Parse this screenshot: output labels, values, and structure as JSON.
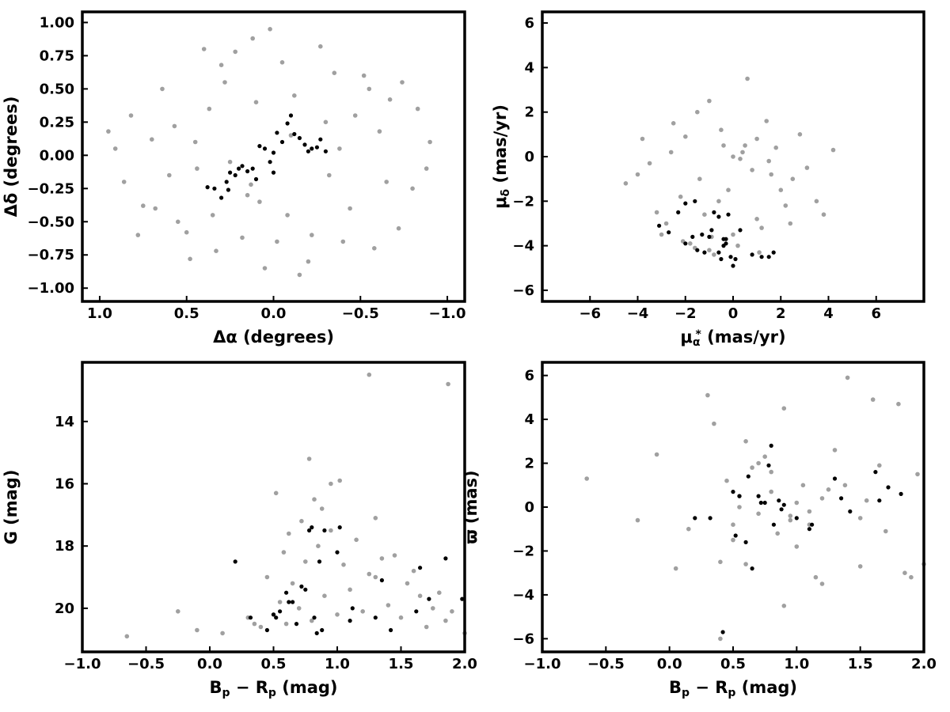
{
  "colors": {
    "field": "#a0a0a0",
    "members": "#000000",
    "frame": "#000000",
    "background": "#ffffff"
  },
  "chart_data": [
    {
      "id": "sky",
      "type": "scatter",
      "xlabel": "Δα (degrees)",
      "ylabel": "Δδ (degrees)",
      "xlim": [
        1.1,
        -1.1
      ],
      "ylim": [
        -1.1,
        1.08
      ],
      "xticks": [
        1.0,
        0.5,
        0.0,
        -0.5,
        -1.0
      ],
      "xtick_labels": [
        "1.0",
        "0.5",
        "0.0",
        "−0.5",
        "−1.0"
      ],
      "yticks": [
        1.0,
        0.75,
        0.5,
        0.25,
        0.0,
        -0.25,
        -0.5,
        -0.75,
        -1.0
      ],
      "ytick_labels": [
        "1.00",
        "0.75",
        "0.50",
        "0.25",
        "0.00",
        "−0.25",
        "−0.50",
        "−0.75",
        "−1.00"
      ],
      "grid": false,
      "series": [
        {
          "x": [
            0.82,
            -0.35,
            0.12,
            0.55,
            -0.61,
            0.33,
            -0.12,
            0.7,
            -0.8,
            0.05,
            -0.44,
            0.28,
            0.91,
            -0.22,
            0.4,
            -0.67,
            0.15,
            -0.05,
            0.6,
            -0.9,
            0.25,
            -0.3,
            0.48,
            -0.72,
            0.02,
            0.37,
            -0.15,
            0.75,
            -0.52,
            0.18,
            -0.38,
            0.64,
            -0.08,
            0.86,
            -0.27,
            0.1,
            -0.58,
            0.44,
            -0.83,
            0.3,
            -0.47,
            0.57,
            -0.2,
            0.08,
            -0.65,
            0.5,
            -0.1,
            0.78,
            -0.4,
            0.22,
            -0.74,
            0.13,
            -0.55,
            0.35,
            -0.32,
            0.68,
            -0.02,
            0.95,
            -0.88,
            0.45
          ],
          "y": [
            0.3,
            0.62,
            0.88,
            -0.5,
            0.18,
            -0.72,
            0.45,
            0.12,
            -0.25,
            -0.85,
            -0.4,
            0.55,
            0.05,
            -0.6,
            0.8,
            0.42,
            -0.3,
            0.7,
            -0.15,
            0.1,
            -0.05,
            0.25,
            -0.78,
            -0.55,
            0.95,
            0.35,
            -0.9,
            -0.38,
            0.6,
            -0.62,
            0.05,
            0.5,
            -0.45,
            -0.2,
            0.82,
            0.4,
            -0.7,
            -0.1,
            0.35,
            0.68,
            0.3,
            0.22,
            -0.8,
            -0.35,
            -0.2,
            -0.58,
            0.15,
            -0.6,
            -0.65,
            0.78,
            0.55,
            -0.22,
            0.5,
            -0.45,
            -0.15,
            -0.4,
            -0.65,
            0.18,
            -0.1,
            0.1
          ]
        },
        {
          "x": [
            0.38,
            0.34,
            0.3,
            0.27,
            0.25,
            0.22,
            0.2,
            0.18,
            0.15,
            0.12,
            0.1,
            0.08,
            0.05,
            0.02,
            0.0,
            -0.02,
            -0.05,
            -0.08,
            -0.1,
            -0.12,
            -0.15,
            -0.18,
            -0.2,
            -0.22,
            -0.25,
            -0.27,
            -0.3,
            0.0,
            0.26
          ],
          "y": [
            -0.24,
            -0.25,
            -0.32,
            -0.2,
            -0.13,
            -0.15,
            -0.1,
            -0.08,
            -0.12,
            -0.1,
            -0.18,
            0.07,
            0.05,
            -0.05,
            0.02,
            0.17,
            0.1,
            0.24,
            0.3,
            0.16,
            0.13,
            0.08,
            0.03,
            0.05,
            0.06,
            0.12,
            0.03,
            -0.13,
            -0.26
          ]
        }
      ]
    },
    {
      "id": "pm",
      "type": "scatter",
      "xlabel_parts": [
        "μ",
        "α",
        "*",
        " (mas/yr)"
      ],
      "ylabel_parts": [
        "μ",
        "δ",
        " (mas/yr)"
      ],
      "xlim": [
        -8,
        8
      ],
      "ylim": [
        -6.5,
        6.5
      ],
      "xticks": [
        -6,
        -4,
        -2,
        0,
        2,
        4,
        6
      ],
      "xtick_labels": [
        "−6",
        "−4",
        "−2",
        "0",
        "2",
        "4",
        "6"
      ],
      "yticks": [
        6,
        4,
        2,
        0,
        -2,
        -4,
        -6
      ],
      "ytick_labels": [
        "6",
        "4",
        "2",
        "0",
        "−2",
        "−4",
        "−6"
      ],
      "grid": false,
      "series": [
        {
          "x": [
            -4.5,
            -3.2,
            -2.1,
            -1.0,
            0.0,
            1.0,
            2.0,
            3.1,
            4.2,
            -3.8,
            -2.5,
            -1.5,
            -0.5,
            0.5,
            1.5,
            2.5,
            3.5,
            -2.8,
            -1.8,
            -0.8,
            0.2,
            1.2,
            2.2,
            -4.0,
            -2.2,
            -1.2,
            -0.2,
            0.8,
            1.8,
            2.8,
            -3.0,
            -1.6,
            -0.6,
            0.4,
            1.4,
            -2.6,
            -1.4,
            0.0,
            1.0,
            2.4,
            -1.0,
            0.6,
            -0.4,
            1.6,
            3.8,
            -3.5,
            -2.0,
            0.3,
            -0.9,
            1.1
          ],
          "y": [
            -1.2,
            -2.5,
            -3.8,
            -4.2,
            -3.5,
            -2.8,
            -1.5,
            -0.5,
            0.3,
            0.8,
            1.5,
            2.0,
            1.2,
            0.5,
            -0.2,
            -1.0,
            -2.0,
            -3.0,
            -3.9,
            -4.4,
            -4.0,
            -3.2,
            -2.2,
            -0.8,
            -1.8,
            -2.6,
            -1.5,
            -0.6,
            0.4,
            1.0,
            -3.5,
            -4.1,
            -2.0,
            0.2,
            1.6,
            0.2,
            -1.0,
            0.0,
            0.8,
            -3.0,
            2.5,
            3.5,
            0.5,
            -0.8,
            -2.6,
            -0.3,
            0.9,
            -0.1,
            -3.6,
            -4.3
          ]
        },
        {
          "x": [
            -3.1,
            -2.7,
            -2.3,
            -2.0,
            -1.7,
            -1.5,
            -1.3,
            -1.2,
            -1.0,
            -0.8,
            -0.6,
            -0.5,
            -0.4,
            -0.3,
            -0.2,
            -0.1,
            0.0,
            0.1,
            0.3,
            0.8,
            1.2,
            1.5,
            1.7,
            -1.6,
            -0.9,
            -0.4,
            -2.0,
            -0.6,
            -0.3
          ],
          "y": [
            -3.1,
            -3.4,
            -2.5,
            -2.1,
            -3.6,
            -4.2,
            -3.5,
            -4.3,
            -3.6,
            -2.5,
            -2.7,
            -4.6,
            -3.7,
            -3.9,
            -2.6,
            -4.5,
            -4.9,
            -4.6,
            -3.3,
            -4.4,
            -4.5,
            -4.5,
            -4.3,
            -2.0,
            -3.3,
            -4.0,
            -3.9,
            -4.3,
            -3.7
          ]
        }
      ]
    },
    {
      "id": "cmd",
      "type": "scatter",
      "xlabel_parts": [
        "B",
        "p",
        " − R",
        "p",
        " (mag)"
      ],
      "ylabel": "G (mag)",
      "xlim": [
        -1.0,
        2.0
      ],
      "ylim": [
        21.4,
        12.1
      ],
      "xticks": [
        -1.0,
        -0.5,
        0.0,
        0.5,
        1.0,
        1.5,
        2.0
      ],
      "xtick_labels": [
        "−1.0",
        "−0.5",
        "0.0",
        "0.5",
        "1.0",
        "1.5",
        "2.0"
      ],
      "yticks": [
        20,
        18,
        16,
        14
      ],
      "ytick_labels": [
        "20",
        "18",
        "16",
        "14"
      ],
      "grid": false,
      "series": [
        {
          "x": [
            -0.65,
            -0.25,
            -0.1,
            0.1,
            0.3,
            0.4,
            0.5,
            0.55,
            0.6,
            0.65,
            0.7,
            0.75,
            0.8,
            0.85,
            0.9,
            0.95,
            1.0,
            1.05,
            1.1,
            1.2,
            1.3,
            1.4,
            1.5,
            1.6,
            1.7,
            1.8,
            1.9,
            2.0,
            0.45,
            0.58,
            0.72,
            0.88,
            1.15,
            1.35,
            1.55,
            1.75,
            0.35,
            0.62,
            0.82,
            1.02,
            1.25,
            1.45,
            1.65,
            1.85,
            0.52,
            0.78,
            0.95,
            1.3,
            1.25,
            1.87
          ],
          "y": [
            20.9,
            20.1,
            20.7,
            20.8,
            20.3,
            20.6,
            20.2,
            19.8,
            20.5,
            19.2,
            20.0,
            18.5,
            20.4,
            18.0,
            19.6,
            17.5,
            20.2,
            18.6,
            19.4,
            20.1,
            19.0,
            19.9,
            20.3,
            18.8,
            20.6,
            19.5,
            20.1,
            20.8,
            19.0,
            18.2,
            17.2,
            16.8,
            17.8,
            18.4,
            19.2,
            20.0,
            20.5,
            17.6,
            16.5,
            15.9,
            18.9,
            18.3,
            19.6,
            20.4,
            16.3,
            15.2,
            16.0,
            17.1,
            12.5,
            12.8
          ]
        },
        {
          "x": [
            0.2,
            0.32,
            0.45,
            0.5,
            0.52,
            0.55,
            0.6,
            0.62,
            0.65,
            0.68,
            0.72,
            0.75,
            0.78,
            0.8,
            0.82,
            0.84,
            0.86,
            0.88,
            0.9,
            1.0,
            1.02,
            1.1,
            1.12,
            1.3,
            1.35,
            1.42,
            1.62,
            1.65,
            1.72,
            1.85,
            1.98
          ],
          "y": [
            18.5,
            20.3,
            20.7,
            20.2,
            20.3,
            20.1,
            19.5,
            19.8,
            19.8,
            20.5,
            19.3,
            19.4,
            17.5,
            17.4,
            20.3,
            20.8,
            18.5,
            20.7,
            17.5,
            18.2,
            17.4,
            20.4,
            20.0,
            20.3,
            19.1,
            20.7,
            20.1,
            18.7,
            19.7,
            18.4,
            19.7
          ]
        }
      ]
    },
    {
      "id": "plx",
      "type": "scatter",
      "xlabel_parts": [
        "B",
        "p",
        " − R",
        "p",
        " (mag)"
      ],
      "ylabel": "ϖ (mas)",
      "xlim": [
        -1.0,
        2.0
      ],
      "ylim": [
        -6.6,
        6.6
      ],
      "xticks": [
        -1.0,
        -0.5,
        0.0,
        0.5,
        1.0,
        1.5,
        2.0
      ],
      "xtick_labels": [
        "−1.0",
        "−0.5",
        "0.0",
        "0.5",
        "1.0",
        "1.5",
        "2.0"
      ],
      "yticks": [
        6,
        4,
        2,
        0,
        -2,
        -4,
        -6
      ],
      "ytick_labels": [
        "6",
        "4",
        "2",
        "0",
        "−2",
        "−4",
        "−6"
      ],
      "grid": false,
      "series": [
        {
          "x": [
            -0.65,
            -0.25,
            -0.1,
            0.05,
            0.15,
            0.3,
            0.4,
            0.45,
            0.5,
            0.55,
            0.6,
            0.65,
            0.7,
            0.75,
            0.8,
            0.85,
            0.9,
            0.95,
            1.0,
            1.05,
            1.1,
            1.15,
            1.2,
            1.3,
            1.4,
            1.5,
            1.6,
            1.7,
            1.8,
            1.9,
            2.0,
            0.35,
            0.6,
            0.9,
            1.2,
            1.5,
            1.85,
            0.5,
            0.8,
            1.0,
            1.38,
            1.55,
            0.4,
            0.7,
            0.95,
            1.25,
            1.65,
            1.95,
            0.55,
            1.1
          ],
          "y": [
            1.3,
            -0.6,
            2.4,
            -2.8,
            -1.0,
            5.1,
            -6.0,
            1.2,
            -0.8,
            0.5,
            -2.6,
            1.8,
            -0.3,
            2.3,
            0.7,
            -1.2,
            4.5,
            -0.4,
            0.2,
            1.0,
            -0.2,
            -3.2,
            0.4,
            2.6,
            5.9,
            -0.5,
            4.9,
            -1.1,
            4.7,
            -3.2,
            -2.6,
            3.8,
            3.0,
            -4.5,
            -3.5,
            -2.7,
            -3.0,
            -1.5,
            1.6,
            -1.8,
            1.0,
            0.3,
            -2.5,
            2.0,
            -0.6,
            0.8,
            1.9,
            1.5,
            0.0,
            -0.8
          ]
        },
        {
          "x": [
            0.2,
            0.32,
            0.42,
            0.5,
            0.52,
            0.55,
            0.6,
            0.62,
            0.65,
            0.7,
            0.72,
            0.75,
            0.78,
            0.8,
            0.82,
            0.86,
            0.88,
            0.9,
            1.0,
            1.1,
            1.12,
            1.3,
            1.35,
            1.42,
            1.62,
            1.65,
            1.72,
            1.82
          ],
          "y": [
            -0.5,
            -0.5,
            -5.7,
            0.7,
            -1.3,
            0.5,
            -1.6,
            1.4,
            -2.8,
            0.5,
            0.2,
            0.2,
            1.9,
            2.8,
            -0.8,
            0.3,
            -0.1,
            0.1,
            -0.5,
            -1.0,
            -0.8,
            1.3,
            0.4,
            -0.2,
            1.6,
            0.3,
            0.9,
            0.6
          ]
        }
      ]
    }
  ]
}
